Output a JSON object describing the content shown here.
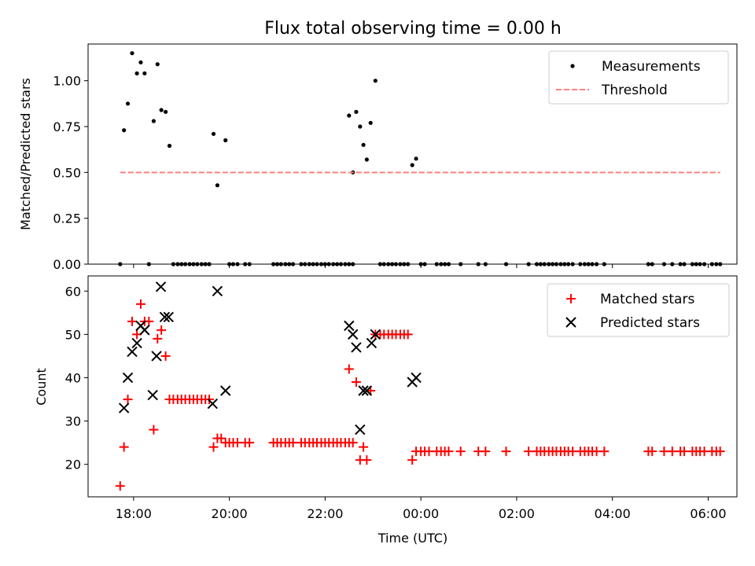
{
  "chart_data": [
    {
      "type": "scatter",
      "title": "Flux total observing time = 0.00 h",
      "xlabel": "",
      "ylabel": "Matched/Predicted stars",
      "xlim": [
        -0.95,
        12.6
      ],
      "ylim": [
        0.0,
        1.2
      ],
      "xticks": [
        0,
        2,
        4,
        6,
        8,
        10,
        12
      ],
      "yticks": [
        0.0,
        0.25,
        0.5,
        0.75,
        1.0
      ],
      "ytick_labels": [
        "0.00",
        "0.25",
        "0.50",
        "0.75",
        "1.00"
      ],
      "grid": false,
      "legend_position": "top-right",
      "legend": [
        "Measurements",
        "Threshold"
      ],
      "series": [
        {
          "name": "Measurements",
          "color": "#000000",
          "marker": "dot",
          "points": [
            [
              -0.28,
              0.0
            ],
            [
              -0.2,
              0.73
            ],
            [
              -0.12,
              0.875
            ],
            [
              -0.03,
              1.15
            ],
            [
              0.07,
              1.04
            ],
            [
              0.15,
              1.1
            ],
            [
              0.23,
              1.04
            ],
            [
              0.32,
              0.0
            ],
            [
              0.42,
              0.78
            ],
            [
              0.5,
              1.09
            ],
            [
              0.58,
              0.84
            ],
            [
              0.67,
              0.83
            ],
            [
              0.75,
              0.645
            ],
            [
              0.83,
              0.0
            ],
            [
              0.92,
              0.0
            ],
            [
              1.0,
              0.0
            ],
            [
              1.08,
              0.0
            ],
            [
              1.17,
              0.0
            ],
            [
              1.25,
              0.0
            ],
            [
              1.33,
              0.0
            ],
            [
              1.42,
              0.0
            ],
            [
              1.5,
              0.0
            ],
            [
              1.58,
              0.0
            ],
            [
              1.67,
              0.71
            ],
            [
              1.75,
              0.43
            ],
            [
              1.92,
              0.675
            ],
            [
              2.0,
              0.0
            ],
            [
              2.08,
              0.0
            ],
            [
              2.17,
              0.0
            ],
            [
              2.33,
              0.0
            ],
            [
              2.42,
              0.0
            ],
            [
              2.92,
              0.0
            ],
            [
              3.0,
              0.0
            ],
            [
              3.08,
              0.0
            ],
            [
              3.17,
              0.0
            ],
            [
              3.25,
              0.0
            ],
            [
              3.33,
              0.0
            ],
            [
              3.5,
              0.0
            ],
            [
              3.58,
              0.0
            ],
            [
              3.67,
              0.0
            ],
            [
              3.75,
              0.0
            ],
            [
              3.83,
              0.0
            ],
            [
              3.92,
              0.0
            ],
            [
              4.0,
              0.0
            ],
            [
              4.08,
              0.0
            ],
            [
              4.17,
              0.0
            ],
            [
              4.25,
              0.0
            ],
            [
              4.33,
              0.0
            ],
            [
              4.42,
              0.0
            ],
            [
              4.5,
              0.0
            ],
            [
              4.58,
              0.0
            ],
            [
              4.5,
              0.81
            ],
            [
              4.58,
              0.5
            ],
            [
              4.65,
              0.83
            ],
            [
              4.73,
              0.75
            ],
            [
              4.8,
              0.65
            ],
            [
              4.87,
              0.57
            ],
            [
              4.95,
              0.77
            ],
            [
              5.05,
              1.0
            ],
            [
              5.15,
              0.0
            ],
            [
              5.23,
              0.0
            ],
            [
              5.32,
              0.0
            ],
            [
              5.4,
              0.0
            ],
            [
              5.48,
              0.0
            ],
            [
              5.57,
              0.0
            ],
            [
              5.65,
              0.0
            ],
            [
              5.73,
              0.0
            ],
            [
              5.82,
              0.54
            ],
            [
              5.9,
              0.575
            ],
            [
              6.0,
              0.0
            ],
            [
              6.08,
              0.0
            ],
            [
              6.33,
              0.0
            ],
            [
              6.42,
              0.0
            ],
            [
              6.5,
              0.0
            ],
            [
              6.58,
              0.0
            ],
            [
              6.83,
              0.0
            ],
            [
              7.2,
              0.0
            ],
            [
              7.35,
              0.0
            ],
            [
              7.78,
              0.0
            ],
            [
              8.25,
              0.0
            ],
            [
              8.42,
              0.0
            ],
            [
              8.5,
              0.0
            ],
            [
              8.58,
              0.0
            ],
            [
              8.67,
              0.0
            ],
            [
              8.75,
              0.0
            ],
            [
              8.83,
              0.0
            ],
            [
              8.92,
              0.0
            ],
            [
              9.0,
              0.0
            ],
            [
              9.08,
              0.0
            ],
            [
              9.17,
              0.0
            ],
            [
              9.33,
              0.0
            ],
            [
              9.42,
              0.0
            ],
            [
              9.5,
              0.0
            ],
            [
              9.58,
              0.0
            ],
            [
              9.67,
              0.0
            ],
            [
              9.83,
              0.0
            ],
            [
              10.75,
              0.0
            ],
            [
              10.83,
              0.0
            ],
            [
              11.08,
              0.0
            ],
            [
              11.25,
              0.0
            ],
            [
              11.42,
              0.0
            ],
            [
              11.5,
              0.0
            ],
            [
              11.67,
              0.0
            ],
            [
              11.75,
              0.0
            ],
            [
              11.83,
              0.0
            ],
            [
              11.92,
              0.0
            ],
            [
              12.08,
              0.0
            ],
            [
              12.17,
              0.0
            ],
            [
              12.25,
              0.0
            ]
          ]
        },
        {
          "name": "Threshold",
          "color": "#ff7f7f",
          "style": "dashed",
          "points": [
            [
              -0.28,
              0.5
            ],
            [
              12.25,
              0.5
            ]
          ]
        }
      ]
    },
    {
      "type": "scatter",
      "title": "",
      "xlabel": "Time (UTC)",
      "ylabel": "Count",
      "xlim": [
        -0.95,
        12.6
      ],
      "ylim": [
        12.5,
        63.5
      ],
      "xticks": [
        0,
        2,
        4,
        6,
        8,
        10,
        12
      ],
      "xtick_labels": [
        "18:00",
        "20:00",
        "22:00",
        "00:00",
        "02:00",
        "04:00",
        "06:00"
      ],
      "yticks": [
        20,
        30,
        40,
        50,
        60
      ],
      "ytick_labels": [
        "20",
        "30",
        "40",
        "50",
        "60"
      ],
      "grid": false,
      "legend_position": "top-right",
      "legend": [
        "Matched stars",
        "Predicted stars"
      ],
      "series": [
        {
          "name": "Matched stars",
          "color": "#ff0000",
          "marker": "plus",
          "points": [
            [
              -0.28,
              15
            ],
            [
              -0.2,
              24
            ],
            [
              -0.12,
              35
            ],
            [
              -0.03,
              53
            ],
            [
              0.07,
              50
            ],
            [
              0.15,
              57
            ],
            [
              0.23,
              53
            ],
            [
              0.32,
              53
            ],
            [
              0.42,
              28
            ],
            [
              0.5,
              49
            ],
            [
              0.58,
              51
            ],
            [
              0.67,
              45
            ],
            [
              0.75,
              35
            ],
            [
              0.83,
              35
            ],
            [
              0.92,
              35
            ],
            [
              1.0,
              35
            ],
            [
              1.08,
              35
            ],
            [
              1.17,
              35
            ],
            [
              1.25,
              35
            ],
            [
              1.33,
              35
            ],
            [
              1.42,
              35
            ],
            [
              1.5,
              35
            ],
            [
              1.58,
              35
            ],
            [
              1.67,
              24
            ],
            [
              1.75,
              26
            ],
            [
              1.83,
              26
            ],
            [
              1.92,
              25
            ],
            [
              2.0,
              25
            ],
            [
              2.08,
              25
            ],
            [
              2.17,
              25
            ],
            [
              2.33,
              25
            ],
            [
              2.42,
              25
            ],
            [
              2.92,
              25
            ],
            [
              3.0,
              25
            ],
            [
              3.08,
              25
            ],
            [
              3.17,
              25
            ],
            [
              3.25,
              25
            ],
            [
              3.33,
              25
            ],
            [
              3.5,
              25
            ],
            [
              3.58,
              25
            ],
            [
              3.67,
              25
            ],
            [
              3.75,
              25
            ],
            [
              3.83,
              25
            ],
            [
              3.92,
              25
            ],
            [
              4.0,
              25
            ],
            [
              4.08,
              25
            ],
            [
              4.17,
              25
            ],
            [
              4.25,
              25
            ],
            [
              4.33,
              25
            ],
            [
              4.42,
              25
            ],
            [
              4.5,
              25
            ],
            [
              4.58,
              25
            ],
            [
              4.5,
              42
            ],
            [
              4.65,
              39
            ],
            [
              4.73,
              21
            ],
            [
              4.8,
              24
            ],
            [
              4.87,
              21
            ],
            [
              4.95,
              37
            ],
            [
              5.05,
              50
            ],
            [
              5.15,
              50
            ],
            [
              5.23,
              50
            ],
            [
              5.32,
              50
            ],
            [
              5.4,
              50
            ],
            [
              5.48,
              50
            ],
            [
              5.57,
              50
            ],
            [
              5.65,
              50
            ],
            [
              5.73,
              50
            ],
            [
              5.82,
              21
            ],
            [
              5.9,
              23
            ],
            [
              6.0,
              23
            ],
            [
              6.08,
              23
            ],
            [
              6.17,
              23
            ],
            [
              6.33,
              23
            ],
            [
              6.42,
              23
            ],
            [
              6.5,
              23
            ],
            [
              6.58,
              23
            ],
            [
              6.83,
              23
            ],
            [
              7.2,
              23
            ],
            [
              7.35,
              23
            ],
            [
              7.78,
              23
            ],
            [
              8.25,
              23
            ],
            [
              8.42,
              23
            ],
            [
              8.5,
              23
            ],
            [
              8.58,
              23
            ],
            [
              8.67,
              23
            ],
            [
              8.75,
              23
            ],
            [
              8.83,
              23
            ],
            [
              8.92,
              23
            ],
            [
              9.0,
              23
            ],
            [
              9.08,
              23
            ],
            [
              9.17,
              23
            ],
            [
              9.33,
              23
            ],
            [
              9.42,
              23
            ],
            [
              9.5,
              23
            ],
            [
              9.58,
              23
            ],
            [
              9.67,
              23
            ],
            [
              9.83,
              23
            ],
            [
              10.75,
              23
            ],
            [
              10.83,
              23
            ],
            [
              11.08,
              23
            ],
            [
              11.25,
              23
            ],
            [
              11.42,
              23
            ],
            [
              11.5,
              23
            ],
            [
              11.67,
              23
            ],
            [
              11.75,
              23
            ],
            [
              11.83,
              23
            ],
            [
              11.92,
              23
            ],
            [
              12.08,
              23
            ],
            [
              12.17,
              23
            ],
            [
              12.25,
              23
            ]
          ]
        },
        {
          "name": "Predicted stars",
          "color": "#000000",
          "marker": "x",
          "points": [
            [
              -0.2,
              33
            ],
            [
              -0.12,
              40
            ],
            [
              -0.03,
              46
            ],
            [
              0.07,
              48
            ],
            [
              0.15,
              52
            ],
            [
              0.23,
              51
            ],
            [
              0.4,
              36
            ],
            [
              0.48,
              45
            ],
            [
              0.57,
              61
            ],
            [
              0.65,
              54
            ],
            [
              0.73,
              54
            ],
            [
              1.65,
              34
            ],
            [
              1.75,
              60
            ],
            [
              1.92,
              37
            ],
            [
              4.5,
              52
            ],
            [
              4.58,
              50
            ],
            [
              4.65,
              47
            ],
            [
              4.73,
              28
            ],
            [
              4.8,
              37
            ],
            [
              4.87,
              37
            ],
            [
              4.97,
              48
            ],
            [
              5.05,
              50
            ],
            [
              5.82,
              39
            ],
            [
              5.9,
              40
            ]
          ]
        }
      ]
    }
  ]
}
